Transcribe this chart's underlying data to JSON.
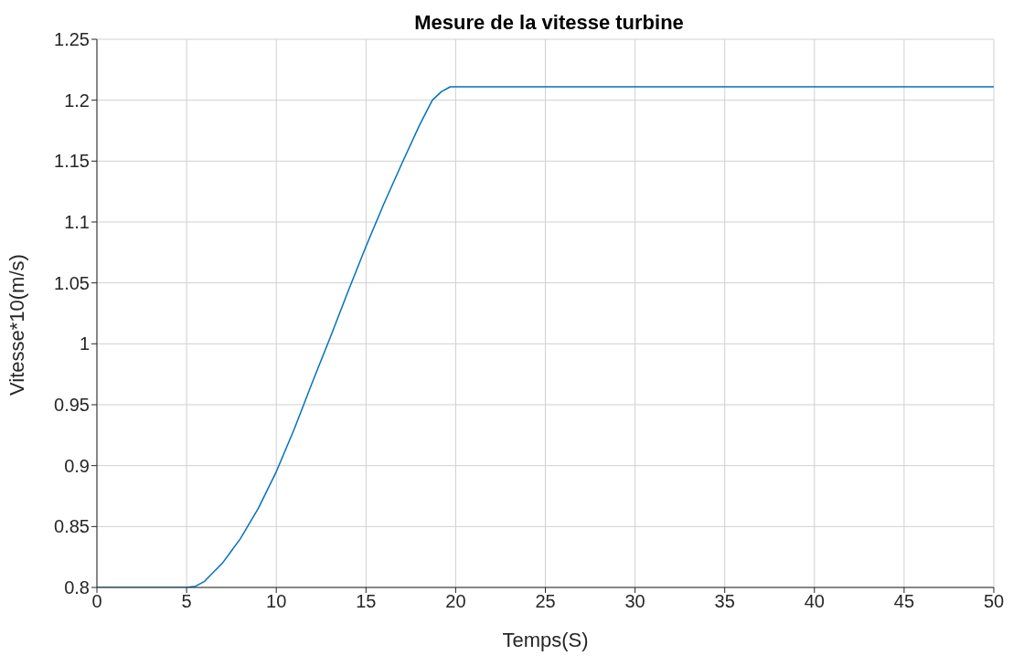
{
  "chart_data": {
    "type": "line",
    "title": "Mesure de la vitesse turbine",
    "xlabel": "Temps(S)",
    "ylabel": "Vitesse*10(m/s)",
    "x": [
      0,
      5,
      5.5,
      6,
      7,
      8,
      9,
      10,
      11,
      12,
      13,
      14,
      15,
      16,
      17,
      18,
      18.7,
      19.2,
      19.7,
      20,
      50
    ],
    "series": [
      {
        "color": "#0072bd",
        "values": [
          0.8,
          0.8,
          0.801,
          0.805,
          0.82,
          0.84,
          0.865,
          0.895,
          0.93,
          0.968,
          1.005,
          1.043,
          1.08,
          1.115,
          1.148,
          1.18,
          1.2,
          1.207,
          1.211,
          1.211,
          1.211
        ]
      }
    ],
    "xlim": [
      0,
      50
    ],
    "xticks": [
      0,
      5,
      10,
      15,
      20,
      25,
      30,
      35,
      40,
      45,
      50
    ],
    "ylim": [
      0.8,
      1.25
    ],
    "yticks": [
      0.8,
      0.85,
      0.9,
      0.95,
      1,
      1.05,
      1.1,
      1.15,
      1.2,
      1.25
    ],
    "grid": true,
    "legend": false,
    "marker": "none",
    "line_style": "solid"
  }
}
